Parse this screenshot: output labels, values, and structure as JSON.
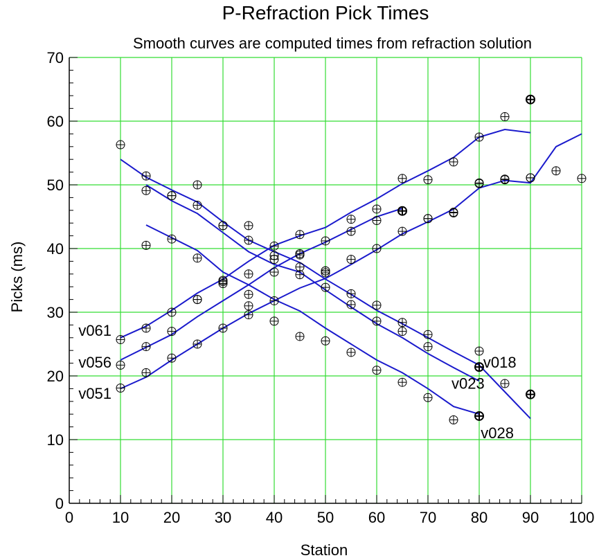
{
  "chart_data": {
    "type": "scatter",
    "title": "P-Refraction Pick Times",
    "subtitle": "Smooth curves are computed times from refraction solution",
    "xlabel": "Station",
    "ylabel": "Picks (ms)",
    "xlim": [
      0,
      100
    ],
    "ylim": [
      0,
      70
    ],
    "xticks": [
      0,
      10,
      20,
      30,
      40,
      50,
      60,
      70,
      80,
      90,
      100
    ],
    "yticks": [
      0,
      10,
      20,
      30,
      40,
      50,
      60,
      70
    ],
    "grid": true,
    "colors": {
      "grid": "#33dd33",
      "curve": "#1a1acc",
      "marker": "#000000"
    },
    "series": [
      {
        "name": "v061",
        "picks": [
          [
            10,
            25.7
          ],
          [
            15,
            27.5
          ],
          [
            20,
            30
          ],
          [
            25,
            32
          ],
          [
            30,
            34.8
          ],
          [
            35,
            36
          ],
          [
            40,
            38.3
          ],
          [
            45,
            42.2
          ],
          [
            50,
            41.2
          ],
          [
            55,
            44.6
          ],
          [
            60,
            46.2
          ],
          [
            65,
            51
          ],
          [
            70,
            50.8
          ],
          [
            75,
            53.6
          ],
          [
            80,
            57.5
          ],
          [
            85,
            60.7
          ],
          [
            90,
            63.4
          ]
        ],
        "curve": [
          [
            10,
            26
          ],
          [
            15,
            27.8
          ],
          [
            20,
            30.3
          ],
          [
            25,
            33
          ],
          [
            30,
            35.2
          ],
          [
            35,
            38
          ],
          [
            40,
            40.5
          ],
          [
            45,
            42
          ],
          [
            50,
            43.3
          ],
          [
            55,
            45.7
          ],
          [
            60,
            47.8
          ],
          [
            65,
            50.2
          ],
          [
            70,
            52.2
          ],
          [
            75,
            54.3
          ],
          [
            80,
            57.5
          ],
          [
            85,
            58.7
          ],
          [
            90,
            58.2
          ]
        ]
      },
      {
        "name": "v056",
        "picks": [
          [
            10,
            21.7
          ],
          [
            15,
            24.6
          ],
          [
            20,
            27
          ],
          [
            25,
            32
          ],
          [
            30,
            34.5
          ],
          [
            35,
            31
          ],
          [
            40,
            36.3
          ],
          [
            45,
            39
          ],
          [
            50,
            36.5
          ],
          [
            55,
            42.7
          ],
          [
            60,
            44.4
          ],
          [
            65,
            45.9
          ],
          [
            70,
            44.7
          ],
          [
            75,
            45.7
          ],
          [
            80,
            50.3
          ],
          [
            85,
            50.9
          ],
          [
            90,
            51.1
          ],
          [
            95,
            52.2
          ],
          [
            100,
            51
          ]
        ],
        "curve": [
          [
            10,
            22.5
          ],
          [
            15,
            24.5
          ],
          [
            20,
            26.5
          ],
          [
            25,
            29.3
          ],
          [
            30,
            31.8
          ],
          [
            35,
            34.3
          ],
          [
            40,
            37
          ],
          [
            45,
            39.2
          ],
          [
            50,
            41
          ],
          [
            55,
            43
          ],
          [
            60,
            45
          ],
          [
            65,
            46.3
          ]
        ]
      },
      {
        "name": "v051",
        "picks": [
          [
            10,
            18.1
          ],
          [
            15,
            20.5
          ],
          [
            20,
            22.8
          ],
          [
            25,
            25
          ],
          [
            30,
            27.5
          ],
          [
            35,
            29.6
          ],
          [
            40,
            31.8
          ],
          [
            45,
            37.1
          ],
          [
            50,
            36.2
          ],
          [
            55,
            38.3
          ],
          [
            60,
            40
          ],
          [
            65,
            42.7
          ],
          [
            70,
            44.7
          ],
          [
            75,
            45.6
          ],
          [
            80,
            50.2
          ],
          [
            85,
            50.8
          ],
          [
            90,
            51.1
          ]
        ],
        "curve": [
          [
            10,
            18
          ],
          [
            15,
            19.8
          ],
          [
            20,
            22.5
          ],
          [
            25,
            25
          ],
          [
            30,
            27.5
          ],
          [
            35,
            29.8
          ],
          [
            40,
            31.8
          ],
          [
            45,
            33.8
          ],
          [
            50,
            35.3
          ],
          [
            55,
            37.5
          ],
          [
            60,
            39.8
          ],
          [
            65,
            42.3
          ],
          [
            70,
            44.2
          ],
          [
            75,
            46.2
          ],
          [
            80,
            49.5
          ],
          [
            85,
            50.7
          ],
          [
            90,
            50.3
          ],
          [
            95,
            56
          ],
          [
            100,
            58
          ]
        ]
      },
      {
        "name": "v018",
        "picks": [
          [
            10,
            56.3
          ],
          [
            15,
            51.4
          ],
          [
            20,
            48.3
          ],
          [
            25,
            50
          ],
          [
            30,
            43.6
          ],
          [
            35,
            43.6
          ],
          [
            40,
            40.4
          ],
          [
            45,
            39.2
          ],
          [
            50,
            36.5
          ],
          [
            55,
            32.9
          ],
          [
            60,
            31.1
          ],
          [
            65,
            28.4
          ],
          [
            70,
            26.5
          ],
          [
            80,
            23.9
          ],
          [
            85,
            18.8
          ],
          [
            90,
            17.1
          ]
        ],
        "curve": [
          [
            10,
            54
          ],
          [
            15,
            51.2
          ],
          [
            20,
            49.2
          ],
          [
            25,
            47.3
          ],
          [
            30,
            44.2
          ],
          [
            35,
            41.3
          ],
          [
            40,
            39.5
          ],
          [
            45,
            37.8
          ],
          [
            50,
            35.2
          ],
          [
            55,
            32.8
          ],
          [
            60,
            30.3
          ],
          [
            65,
            28.2
          ],
          [
            70,
            26
          ],
          [
            75,
            23.8
          ],
          [
            80,
            21.7
          ],
          [
            85,
            17.5
          ],
          [
            90,
            13.3
          ]
        ]
      },
      {
        "name": "v023",
        "picks": [
          [
            15,
            49.1
          ],
          [
            20,
            48.3
          ],
          [
            25,
            46.8
          ],
          [
            30,
            43.6
          ],
          [
            35,
            41.3
          ],
          [
            40,
            38.9
          ],
          [
            45,
            35.9
          ],
          [
            50,
            33.9
          ],
          [
            55,
            31.2
          ],
          [
            60,
            28.6
          ],
          [
            65,
            27
          ],
          [
            70,
            24.6
          ],
          [
            80,
            21.4
          ]
        ],
        "curve": [
          [
            15,
            50
          ],
          [
            20,
            47.5
          ],
          [
            25,
            45.5
          ],
          [
            30,
            42.5
          ],
          [
            35,
            39.5
          ],
          [
            40,
            37.5
          ],
          [
            45,
            36.3
          ],
          [
            50,
            33.5
          ],
          [
            55,
            30.8
          ],
          [
            60,
            28.2
          ],
          [
            65,
            26
          ],
          [
            70,
            23.5
          ],
          [
            75,
            21.3
          ],
          [
            80,
            19.2
          ]
        ]
      },
      {
        "name": "v028",
        "picks": [
          [
            15,
            40.5
          ],
          [
            20,
            41.5
          ],
          [
            25,
            38.5
          ],
          [
            30,
            35
          ],
          [
            35,
            32.8
          ],
          [
            40,
            28.6
          ],
          [
            45,
            26.2
          ],
          [
            50,
            25.5
          ],
          [
            55,
            23.7
          ],
          [
            60,
            20.9
          ],
          [
            65,
            19
          ],
          [
            70,
            16.6
          ],
          [
            75,
            13.1
          ],
          [
            80,
            13.7
          ]
        ],
        "curve": [
          [
            15,
            43.7
          ],
          [
            20,
            41.7
          ],
          [
            25,
            39.7
          ],
          [
            30,
            36.3
          ],
          [
            35,
            34.3
          ],
          [
            40,
            32
          ],
          [
            45,
            30.2
          ],
          [
            50,
            27.5
          ],
          [
            55,
            25
          ],
          [
            60,
            22.5
          ],
          [
            65,
            20.5
          ],
          [
            70,
            18
          ],
          [
            75,
            15.2
          ],
          [
            80,
            14
          ]
        ]
      }
    ],
    "highlighted_picks": [
      [
        65,
        45.9
      ],
      [
        80,
        21.4
      ],
      [
        80,
        13.7
      ],
      [
        90,
        63.4
      ],
      [
        90,
        17.1
      ]
    ],
    "curve_labels": [
      {
        "text": "v061",
        "x": 1.8,
        "y": 26.3
      },
      {
        "text": "v056",
        "x": 1.8,
        "y": 21.3
      },
      {
        "text": "v051",
        "x": 1.8,
        "y": 16.4
      },
      {
        "text": "v018",
        "x": 80.8,
        "y": 21.3
      },
      {
        "text": "v023",
        "x": 74.6,
        "y": 18.0
      },
      {
        "text": "v028",
        "x": 80.3,
        "y": 10.2
      }
    ]
  }
}
